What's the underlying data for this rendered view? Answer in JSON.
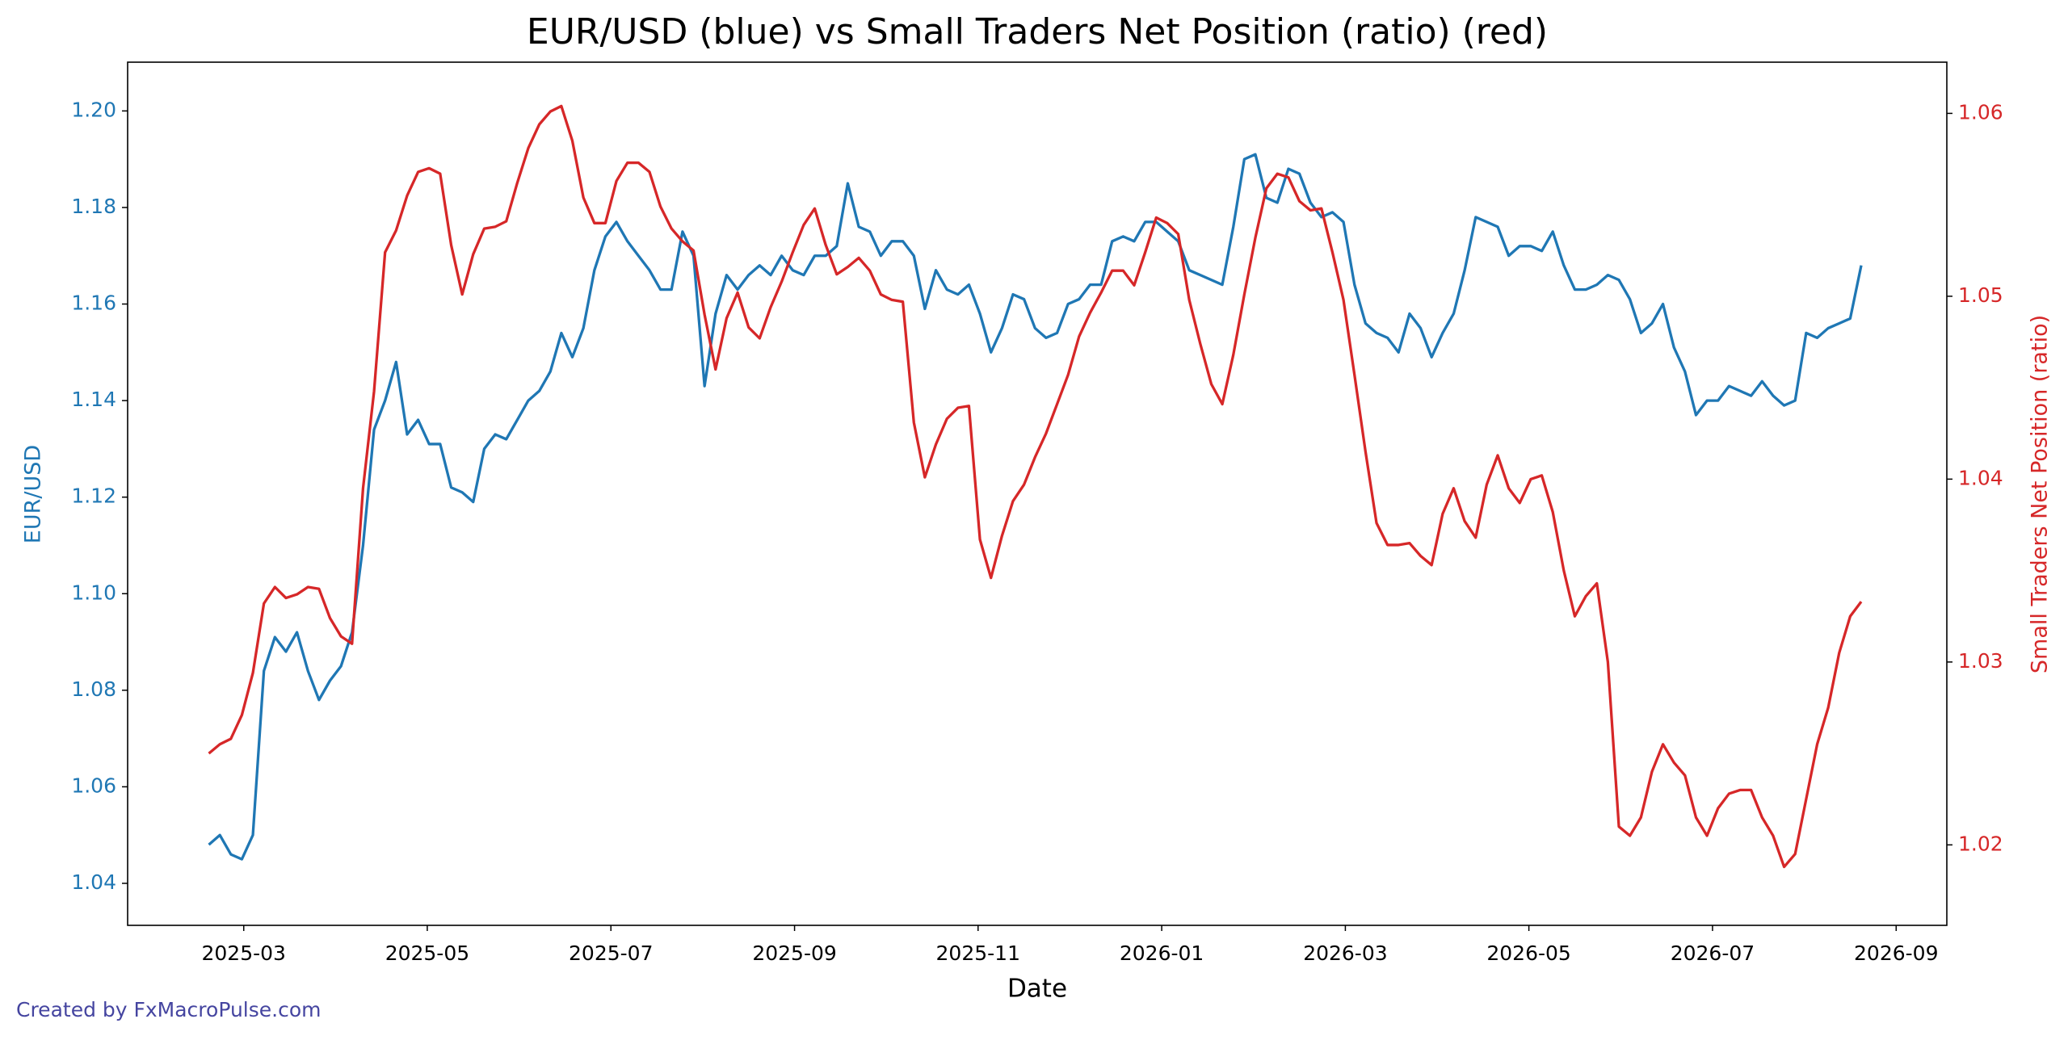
{
  "chart_data": {
    "type": "line",
    "title": "EUR/USD (blue) vs Small Traders Net Position (ratio) (red)",
    "xlabel": "Date",
    "ylabel": "EUR/USD",
    "y2label": "Small Traders Net Position (ratio)",
    "credit": "Created by FxMacroPulse.com",
    "xlim": [
      2025.0613,
      2026.7127
    ],
    "xticks": [
      {
        "value": 2025.1667,
        "label": "2025-03"
      },
      {
        "value": 2025.3333,
        "label": "2025-05"
      },
      {
        "value": 2025.5,
        "label": "2025-07"
      },
      {
        "value": 2025.6667,
        "label": "2025-09"
      },
      {
        "value": 2025.8333,
        "label": "2025-11"
      },
      {
        "value": 2026.0,
        "label": "2026-01"
      },
      {
        "value": 2026.1667,
        "label": "2026-03"
      },
      {
        "value": 2026.3333,
        "label": "2026-05"
      },
      {
        "value": 2026.5,
        "label": "2026-07"
      },
      {
        "value": 2026.6667,
        "label": "2026-09"
      }
    ],
    "ylim": [
      1.0313,
      1.2101
    ],
    "yticks": [
      1.04,
      1.06,
      1.08,
      {
        "value": 1.1,
        "label": "1.10"
      },
      1.12,
      1.14,
      1.16,
      1.18,
      {
        "value": 1.2,
        "label": "1.20"
      }
    ],
    "y2lim": [
      1.0156,
      1.0628
    ],
    "y2ticks": [
      1.02,
      1.03,
      1.04,
      1.05,
      1.06
    ],
    "x": [
      2025.135,
      2025.145,
      2025.155,
      2025.165,
      2025.175,
      2025.185,
      2025.195,
      2025.205,
      2025.215,
      2025.225,
      2025.235,
      2025.245,
      2025.255,
      2025.265,
      2025.275,
      2025.285,
      2025.295,
      2025.305,
      2025.315,
      2025.325,
      2025.335,
      2025.345,
      2025.355,
      2025.365,
      2025.375,
      2025.385,
      2025.395,
      2025.405,
      2025.415,
      2025.425,
      2025.435,
      2025.445,
      2025.455,
      2025.465,
      2025.475,
      2025.485,
      2025.495,
      2025.505,
      2025.515,
      2025.525,
      2025.535,
      2025.545,
      2025.555,
      2025.565,
      2025.575,
      2025.585,
      2025.595,
      2025.605,
      2025.615,
      2025.625,
      2025.635,
      2025.645,
      2025.655,
      2025.665,
      2025.675,
      2025.685,
      2025.695,
      2025.705,
      2025.715,
      2025.725,
      2025.735,
      2025.745,
      2025.755,
      2025.765,
      2025.775,
      2025.785,
      2025.795,
      2025.805,
      2025.815,
      2025.825,
      2025.835,
      2025.845,
      2025.855,
      2025.865,
      2025.875,
      2025.885,
      2025.895,
      2025.905,
      2025.915,
      2025.925,
      2025.935,
      2025.945,
      2025.955,
      2025.965,
      2025.975,
      2025.985,
      2025.995,
      2026.005,
      2026.015,
      2026.025,
      2026.035,
      2026.045,
      2026.055,
      2026.065,
      2026.075,
      2026.085,
      2026.095,
      2026.105,
      2026.115,
      2026.125,
      2026.135,
      2026.145,
      2026.155,
      2026.165,
      2026.175,
      2026.185,
      2026.195,
      2026.205,
      2026.215,
      2026.225,
      2026.235,
      2026.245,
      2026.255,
      2026.265,
      2026.275,
      2026.285,
      2026.295,
      2026.305,
      2026.315,
      2026.325,
      2026.335,
      2026.345,
      2026.355,
      2026.365,
      2026.375,
      2026.385,
      2026.395,
      2026.405,
      2026.415,
      2026.425,
      2026.435,
      2026.445,
      2026.455,
      2026.465,
      2026.475,
      2026.485,
      2026.495,
      2026.505,
      2026.515,
      2026.525,
      2026.535,
      2026.545,
      2026.555,
      2026.565,
      2026.575,
      2026.585,
      2026.595,
      2026.605,
      2026.615,
      2026.625,
      2026.635
    ],
    "series": [
      {
        "color": "#1f77b4",
        "values": [
          1.048,
          1.05,
          1.046,
          1.045,
          1.05,
          1.084,
          1.091,
          1.088,
          1.092,
          1.084,
          1.078,
          1.082,
          1.085,
          1.092,
          1.11,
          1.134,
          1.14,
          1.148,
          1.133,
          1.136,
          1.131,
          1.131,
          1.122,
          1.121,
          1.119,
          1.13,
          1.133,
          1.132,
          1.136,
          1.14,
          1.142,
          1.146,
          1.154,
          1.149,
          1.155,
          1.167,
          1.174,
          1.177,
          1.173,
          1.17,
          1.167,
          1.163,
          1.163,
          1.175,
          1.17,
          1.143,
          1.158,
          1.166,
          1.163,
          1.166,
          1.168,
          1.166,
          1.17,
          1.167,
          1.166,
          1.17,
          1.17,
          1.172,
          1.185,
          1.176,
          1.175,
          1.17,
          1.173,
          1.173,
          1.17,
          1.159,
          1.167,
          1.163,
          1.162,
          1.164,
          1.158,
          1.15,
          1.155,
          1.162,
          1.161,
          1.155,
          1.153,
          1.154,
          1.16,
          1.161,
          1.164,
          1.164,
          1.173,
          1.174,
          1.173,
          1.177,
          1.177,
          1.175,
          1.173,
          1.167,
          1.166,
          1.165,
          1.164,
          1.176,
          1.19,
          1.191,
          1.182,
          1.181,
          1.188,
          1.187,
          1.181,
          1.178,
          1.179,
          1.177,
          1.164,
          1.156,
          1.154,
          1.153,
          1.15,
          1.158,
          1.155,
          1.149,
          1.154,
          1.158,
          1.167,
          1.178,
          1.177,
          1.176,
          1.17,
          1.172,
          1.172,
          1.171,
          1.175,
          1.168,
          1.163,
          1.163,
          1.164,
          1.166,
          1.165,
          1.161,
          1.154,
          1.156,
          1.16,
          1.151,
          1.146,
          1.137,
          1.14,
          1.14,
          1.143,
          1.142,
          1.141,
          1.144,
          1.141,
          1.139,
          1.14,
          1.154,
          1.153,
          1.155,
          1.156,
          1.157,
          1.168
        ]
      },
      {
        "color": "#d62728",
        "axis": "y2",
        "values": [
          1.025,
          1.0255,
          1.0258,
          1.0271,
          1.0294,
          1.0332,
          1.0341,
          1.0335,
          1.0337,
          1.0341,
          1.034,
          1.0324,
          1.0314,
          1.031,
          1.0395,
          1.0448,
          1.0524,
          1.0536,
          1.0555,
          1.0568,
          1.057,
          1.0567,
          1.0528,
          1.0501,
          1.0523,
          1.0537,
          1.0538,
          1.0541,
          1.0562,
          1.0581,
          1.0594,
          1.0601,
          1.0604,
          1.0585,
          1.0554,
          1.054,
          1.054,
          1.0563,
          1.0573,
          1.0573,
          1.0568,
          1.0549,
          1.0537,
          1.053,
          1.0525,
          1.049,
          1.046,
          1.0488,
          1.0502,
          1.0483,
          1.0477,
          1.0494,
          1.0508,
          1.0524,
          1.0539,
          1.0548,
          1.0528,
          1.0512,
          1.0516,
          1.0521,
          1.0514,
          1.0501,
          1.0498,
          1.0497,
          1.0431,
          1.0401,
          1.0419,
          1.0433,
          1.0439,
          1.044,
          1.0367,
          1.0346,
          1.0369,
          1.0388,
          1.0397,
          1.0412,
          1.0425,
          1.0441,
          1.0457,
          1.0478,
          1.0491,
          1.0502,
          1.0514,
          1.0514,
          1.0506,
          1.0524,
          1.0543,
          1.054,
          1.0534,
          1.0498,
          1.0474,
          1.0452,
          1.0441,
          1.0468,
          1.0501,
          1.0532,
          1.0559,
          1.0567,
          1.0565,
          1.0552,
          1.0547,
          1.0548,
          1.0524,
          1.0498,
          1.0457,
          1.0415,
          1.0376,
          1.0364,
          1.0364,
          1.0365,
          1.0358,
          1.0353,
          1.0381,
          1.0395,
          1.0377,
          1.0368,
          1.0397,
          1.0413,
          1.0395,
          1.0387,
          1.04,
          1.0402,
          1.0382,
          1.035,
          1.0325,
          1.0336,
          1.0343,
          1.03,
          1.021,
          1.0205,
          1.0215,
          1.024,
          1.0255,
          1.0245,
          1.0238,
          1.0215,
          1.0205,
          1.022,
          1.0228,
          1.023,
          1.023,
          1.0215,
          1.0205,
          1.0188,
          1.0195,
          1.0225,
          1.0255,
          1.0275,
          1.0305,
          1.0325,
          1.0333
        ]
      }
    ]
  }
}
